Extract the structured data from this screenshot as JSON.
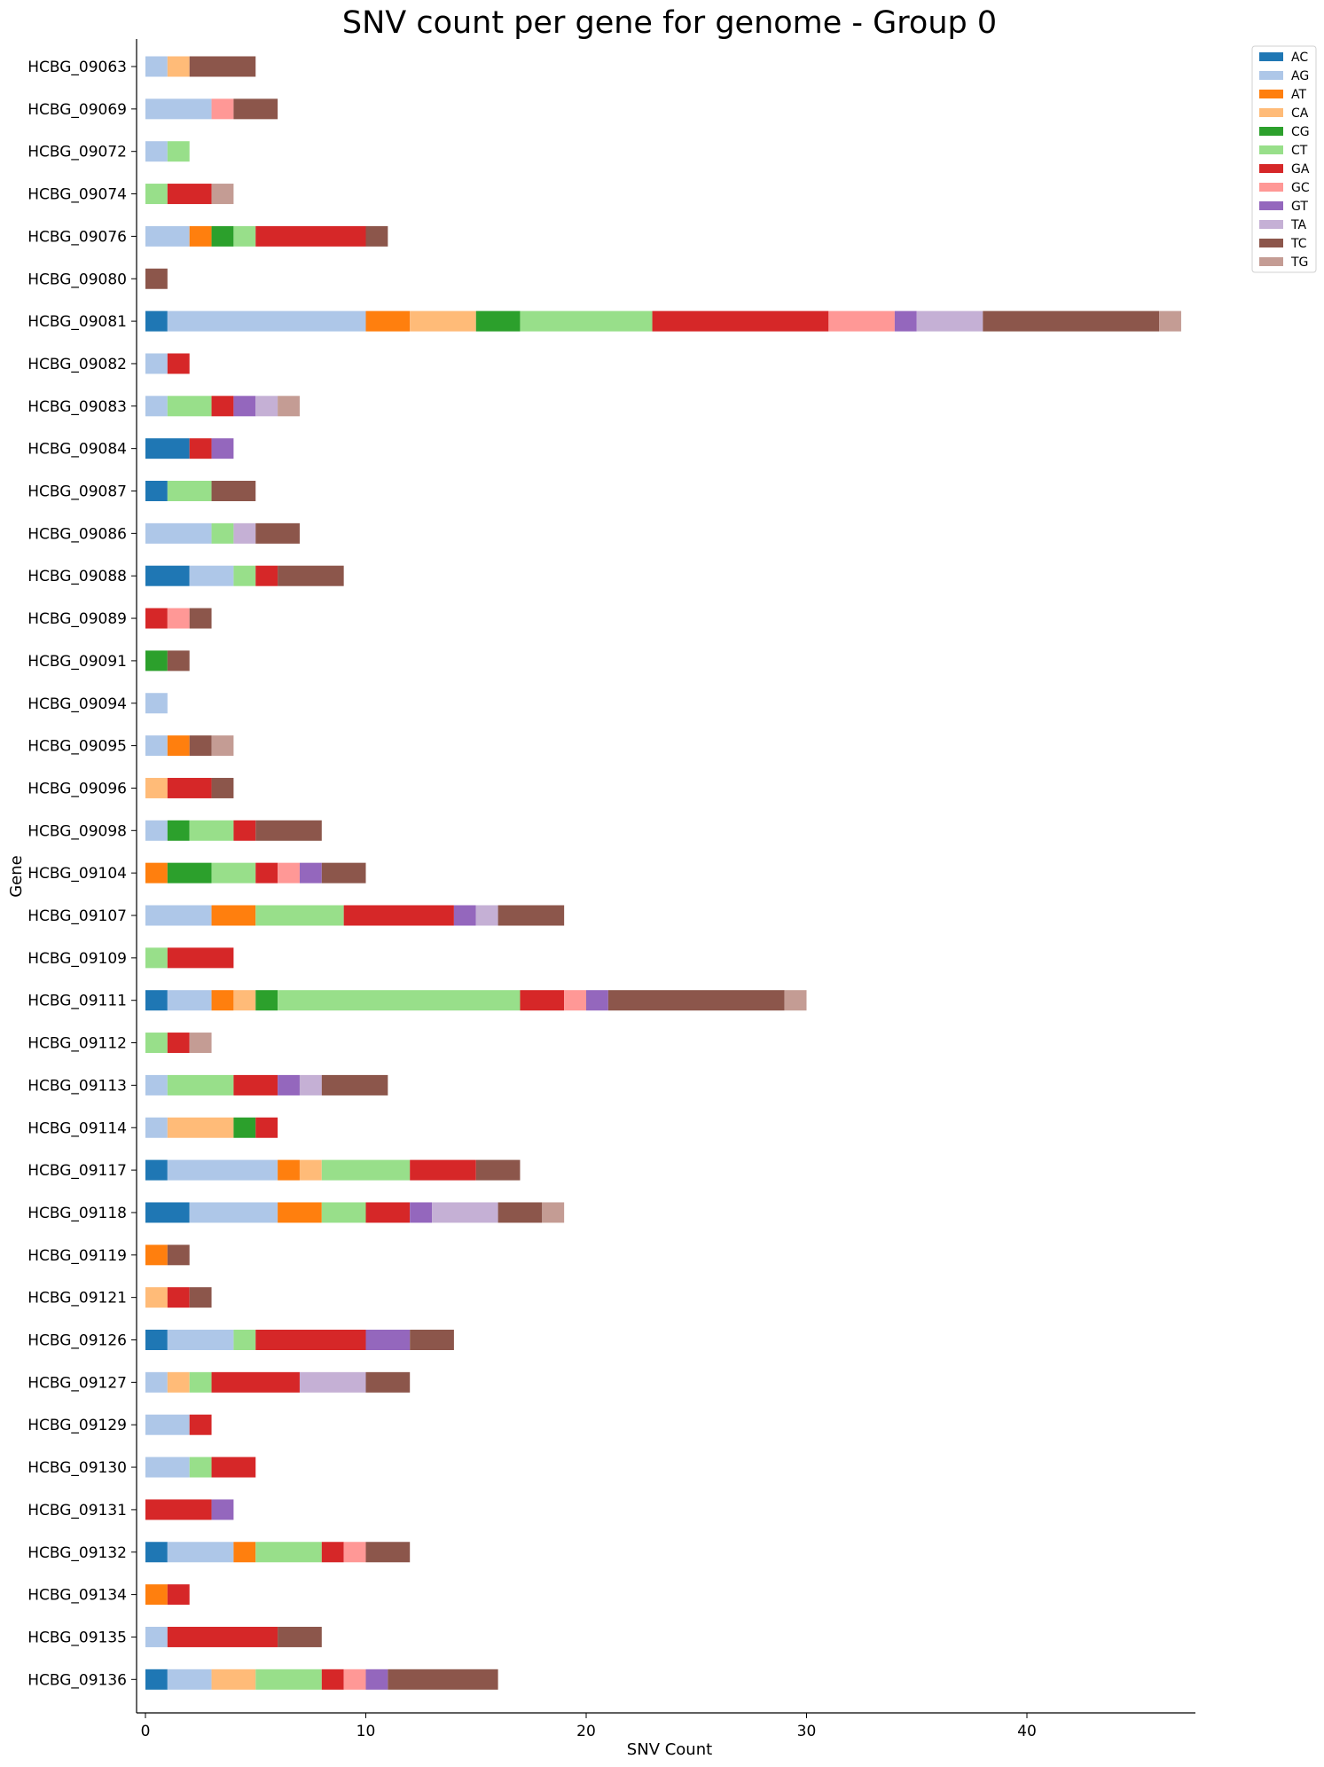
{
  "chart_data": {
    "type": "bar",
    "orientation": "horizontal",
    "stacked": true,
    "title": "SNV count per gene for genome - Group 0",
    "xlabel": "SNV Count",
    "ylabel": "Gene",
    "xlim": [
      -0.4,
      47.5
    ],
    "xticks": [
      0,
      10,
      20,
      30,
      40
    ],
    "grid": false,
    "legend": "top-right-outside",
    "categories": [
      "HCBG_09063",
      "HCBG_09069",
      "HCBG_09072",
      "HCBG_09074",
      "HCBG_09076",
      "HCBG_09080",
      "HCBG_09081",
      "HCBG_09082",
      "HCBG_09083",
      "HCBG_09084",
      "HCBG_09087",
      "HCBG_09086",
      "HCBG_09088",
      "HCBG_09089",
      "HCBG_09091",
      "HCBG_09094",
      "HCBG_09095",
      "HCBG_09096",
      "HCBG_09098",
      "HCBG_09104",
      "HCBG_09107",
      "HCBG_09109",
      "HCBG_09111",
      "HCBG_09112",
      "HCBG_09113",
      "HCBG_09114",
      "HCBG_09117",
      "HCBG_09118",
      "HCBG_09119",
      "HCBG_09121",
      "HCBG_09126",
      "HCBG_09127",
      "HCBG_09129",
      "HCBG_09130",
      "HCBG_09131",
      "HCBG_09132",
      "HCBG_09134",
      "HCBG_09135",
      "HCBG_09136"
    ],
    "series": [
      {
        "name": "AC",
        "color": "#1f77b4",
        "values": [
          0,
          0,
          0,
          0,
          0,
          0,
          1,
          0,
          0,
          2,
          1,
          0,
          2,
          0,
          0,
          0,
          0,
          0,
          0,
          0,
          0,
          0,
          1,
          0,
          0,
          0,
          1,
          2,
          0,
          0,
          1,
          0,
          0,
          0,
          0,
          1,
          0,
          0,
          1
        ]
      },
      {
        "name": "AG",
        "color": "#aec7e8",
        "values": [
          1,
          3,
          1,
          0,
          2,
          0,
          9,
          1,
          1,
          0,
          0,
          3,
          2,
          0,
          0,
          1,
          1,
          0,
          1,
          0,
          3,
          0,
          2,
          0,
          1,
          1,
          5,
          4,
          0,
          0,
          3,
          1,
          2,
          2,
          0,
          3,
          0,
          1,
          2
        ]
      },
      {
        "name": "AT",
        "color": "#ff7f0e",
        "values": [
          0,
          0,
          0,
          0,
          1,
          0,
          2,
          0,
          0,
          0,
          0,
          0,
          0,
          0,
          0,
          0,
          1,
          0,
          0,
          1,
          2,
          0,
          1,
          0,
          0,
          0,
          1,
          2,
          1,
          0,
          0,
          0,
          0,
          0,
          0,
          1,
          1,
          0,
          0
        ]
      },
      {
        "name": "CA",
        "color": "#ffbb78",
        "values": [
          1,
          0,
          0,
          0,
          0,
          0,
          3,
          0,
          0,
          0,
          0,
          0,
          0,
          0,
          0,
          0,
          0,
          1,
          0,
          0,
          0,
          0,
          1,
          0,
          0,
          3,
          1,
          0,
          0,
          1,
          0,
          1,
          0,
          0,
          0,
          0,
          0,
          0,
          2
        ]
      },
      {
        "name": "CG",
        "color": "#2ca02c",
        "values": [
          0,
          0,
          0,
          0,
          1,
          0,
          2,
          0,
          0,
          0,
          0,
          0,
          0,
          0,
          1,
          0,
          0,
          0,
          1,
          2,
          0,
          0,
          1,
          0,
          0,
          1,
          0,
          0,
          0,
          0,
          0,
          0,
          0,
          0,
          0,
          0,
          0,
          0,
          0
        ]
      },
      {
        "name": "CT",
        "color": "#98df8a",
        "values": [
          0,
          0,
          1,
          1,
          1,
          0,
          6,
          0,
          2,
          0,
          2,
          1,
          1,
          0,
          0,
          0,
          0,
          0,
          2,
          2,
          4,
          1,
          11,
          1,
          3,
          0,
          4,
          2,
          0,
          0,
          1,
          1,
          0,
          1,
          0,
          3,
          0,
          0,
          3
        ]
      },
      {
        "name": "GA",
        "color": "#d62728",
        "values": [
          0,
          0,
          0,
          2,
          5,
          0,
          8,
          1,
          1,
          1,
          0,
          0,
          1,
          1,
          0,
          0,
          0,
          2,
          1,
          1,
          5,
          3,
          2,
          1,
          2,
          1,
          3,
          2,
          0,
          1,
          5,
          4,
          1,
          2,
          3,
          1,
          1,
          5,
          1
        ]
      },
      {
        "name": "GC",
        "color": "#ff9896",
        "values": [
          0,
          1,
          0,
          0,
          0,
          0,
          3,
          0,
          0,
          0,
          0,
          0,
          0,
          1,
          0,
          0,
          0,
          0,
          0,
          1,
          0,
          0,
          1,
          0,
          0,
          0,
          0,
          0,
          0,
          0,
          0,
          0,
          0,
          0,
          0,
          1,
          0,
          0,
          1
        ]
      },
      {
        "name": "GT",
        "color": "#9467bd",
        "values": [
          0,
          0,
          0,
          0,
          0,
          0,
          1,
          0,
          1,
          1,
          0,
          0,
          0,
          0,
          0,
          0,
          0,
          0,
          0,
          1,
          1,
          0,
          1,
          0,
          1,
          0,
          0,
          1,
          0,
          0,
          2,
          0,
          0,
          0,
          1,
          0,
          0,
          0,
          1
        ]
      },
      {
        "name": "TA",
        "color": "#c5b0d5",
        "values": [
          0,
          0,
          0,
          0,
          0,
          0,
          3,
          0,
          1,
          0,
          0,
          1,
          0,
          0,
          0,
          0,
          0,
          0,
          0,
          0,
          1,
          0,
          0,
          0,
          1,
          0,
          0,
          3,
          0,
          0,
          0,
          3,
          0,
          0,
          0,
          0,
          0,
          0,
          0
        ]
      },
      {
        "name": "TC",
        "color": "#8c564b",
        "values": [
          3,
          2,
          0,
          0,
          1,
          1,
          8,
          0,
          0,
          0,
          2,
          2,
          3,
          1,
          1,
          0,
          1,
          1,
          3,
          2,
          3,
          0,
          8,
          0,
          3,
          0,
          2,
          2,
          1,
          1,
          2,
          2,
          0,
          0,
          0,
          2,
          0,
          2,
          5
        ]
      },
      {
        "name": "TG",
        "color": "#c49c94",
        "values": [
          0,
          0,
          0,
          1,
          0,
          0,
          1,
          0,
          1,
          0,
          0,
          0,
          0,
          0,
          0,
          0,
          1,
          0,
          0,
          0,
          0,
          0,
          1,
          1,
          0,
          0,
          0,
          1,
          0,
          0,
          0,
          0,
          0,
          0,
          0,
          0,
          0,
          0,
          0
        ]
      }
    ]
  }
}
